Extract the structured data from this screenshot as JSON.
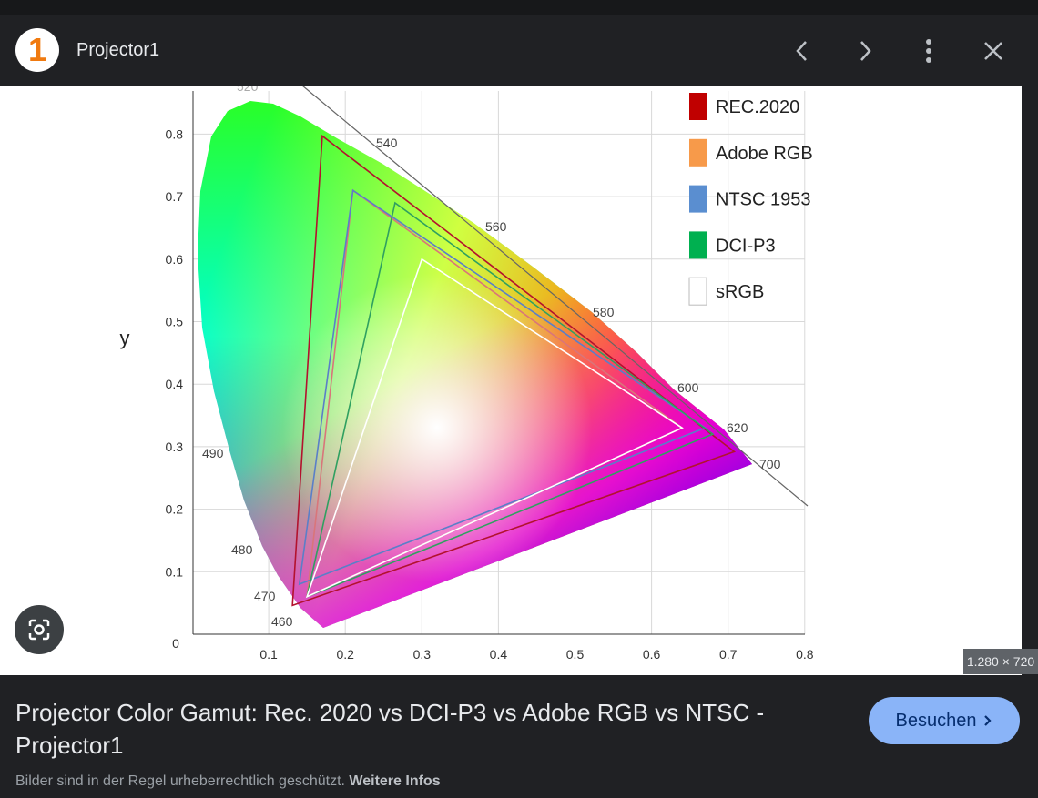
{
  "header": {
    "logo": "1",
    "site": "Projector1"
  },
  "image": {
    "axis_label": "y",
    "origin": 0,
    "xticks": [
      0.1,
      0.2,
      0.3,
      0.4,
      0.5,
      0.6,
      0.7,
      0.8
    ],
    "yticks": [
      0.1,
      0.2,
      0.3,
      0.4,
      0.5,
      0.6,
      0.7,
      0.8
    ],
    "wavelengths": [
      "520",
      "540",
      "560",
      "580",
      "600",
      "620",
      "700",
      "490",
      "480",
      "470",
      "460"
    ],
    "gamuts": [
      {
        "name": "REC.2020",
        "color": "#c00000",
        "line": "#b3122e",
        "x": [
          0.708,
          0.17,
          0.131
        ],
        "y": [
          0.292,
          0.797,
          0.046
        ]
      },
      {
        "name": "Adobe RGB",
        "color": "#f79a4a",
        "line": "#d9757a",
        "x": [
          0.64,
          0.21,
          0.15
        ],
        "y": [
          0.33,
          0.71,
          0.06
        ]
      },
      {
        "name": "NTSC 1953",
        "color": "#5a8ed0",
        "line": "#5a7fc8",
        "x": [
          0.67,
          0.21,
          0.14
        ],
        "y": [
          0.33,
          0.71,
          0.08
        ]
      },
      {
        "name": "DCI-P3",
        "color": "#00b050",
        "line": "#2fa060",
        "x": [
          0.68,
          0.265,
          0.15
        ],
        "y": [
          0.32,
          0.69,
          0.06
        ]
      },
      {
        "name": "sRGB",
        "color": "#ffffff",
        "line": "#ffffff",
        "x": [
          0.64,
          0.3,
          0.15
        ],
        "y": [
          0.33,
          0.6,
          0.06
        ]
      }
    ],
    "size": "1.280 × 720"
  },
  "footer": {
    "title": "Projector Color Gamut: Rec. 2020 vs DCI-P3 vs Adobe RGB vs NTSC - Projector1",
    "button": "Besuchen",
    "notice": "Bilder sind in der Regel urheberrechtlich geschützt.",
    "link": "Weitere Infos"
  }
}
